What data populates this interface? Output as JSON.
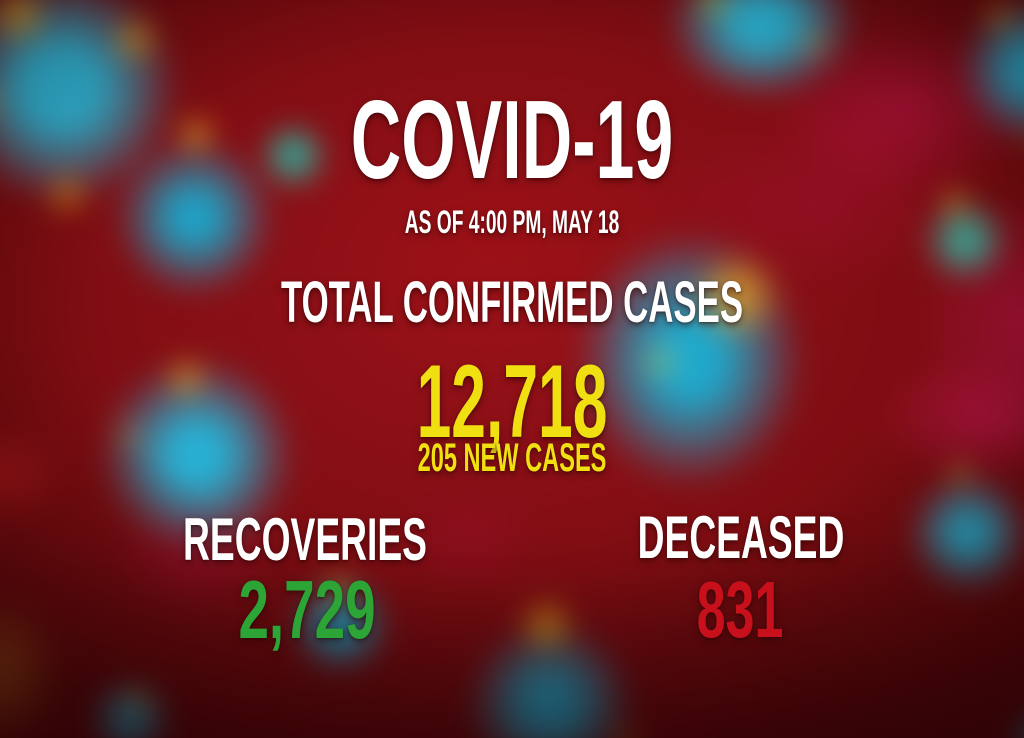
{
  "poster": {
    "title": "COVID-19",
    "as_of": "AS OF 4:00 PM, MAY 18",
    "total": {
      "label": "TOTAL CONFIRMED CASES",
      "value": "12,718",
      "new_cases": "205 NEW CASES"
    },
    "recoveries": {
      "label": "RECOVERIES",
      "value": "2,729"
    },
    "deceased": {
      "label": "DECEASED",
      "value": "831"
    }
  },
  "colors": {
    "text_white": "#FFFFFF",
    "confirmed_yellow": "#F0E011",
    "recoveries_green": "#2DA436",
    "deceased_red": "#C8101C",
    "background_red": "#7E0D12",
    "virus_teal": "#23AACB",
    "virus_orange": "#F5A71B",
    "swirl_magenta": "#B01648"
  }
}
